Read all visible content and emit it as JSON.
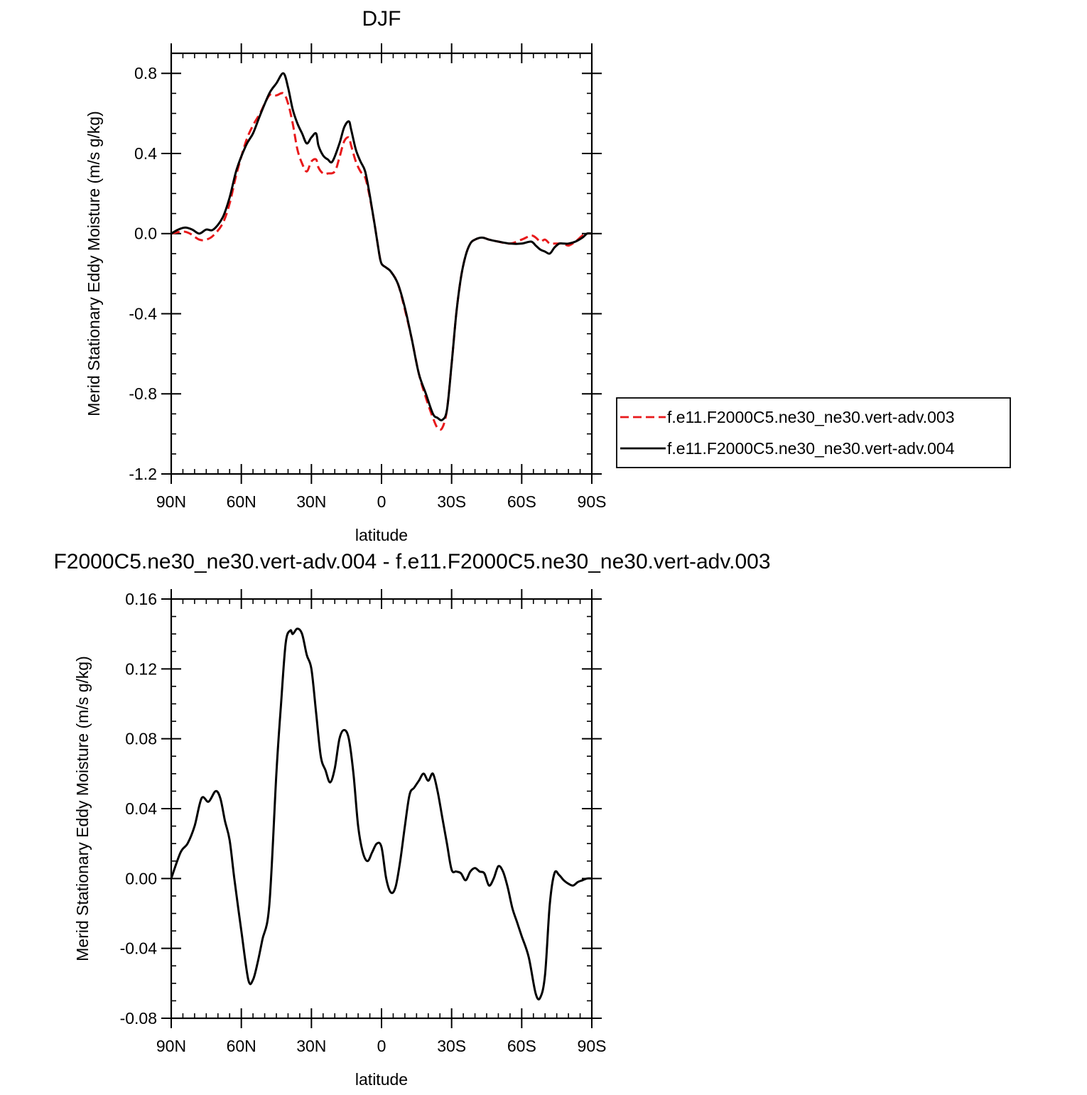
{
  "chart_data": [
    {
      "type": "line",
      "title": "DJF",
      "xlabel": "latitude",
      "ylabel": "Merid Stationary Eddy Moisture (m/s g/kg)",
      "xlim": [
        -90,
        90
      ],
      "ylim": [
        -1.2,
        0.9
      ],
      "x_ticks": [
        -90,
        -60,
        -30,
        0,
        30,
        60,
        90
      ],
      "x_tick_labels": [
        "90N",
        "60N",
        "30N",
        "0",
        "30S",
        "60S",
        "90S"
      ],
      "y_ticks": [
        -1.2,
        -0.8,
        -0.4,
        0.0,
        0.4,
        0.8
      ],
      "y_tick_labels": [
        "-1.2",
        "-0.8",
        "-0.4",
        "0.0",
        "0.4",
        "0.8"
      ],
      "legend_position": "right",
      "series": [
        {
          "name": "f.e11.F2000C5.ne30_ne30.vert-adv.003",
          "color": "#e8191b",
          "dash": "dashed",
          "x": [
            -90,
            -85,
            -82,
            -78,
            -75,
            -72,
            -68,
            -65,
            -62,
            -58,
            -55,
            -52,
            -48,
            -45,
            -42,
            -40,
            -38,
            -36,
            -34,
            -32,
            -30,
            -28,
            -27,
            -25,
            -23,
            -20,
            -18,
            -16,
            -14,
            -13,
            -11,
            -9,
            -7,
            -5,
            -3,
            -1,
            0,
            2,
            4,
            7,
            10,
            13,
            16,
            19,
            22,
            24,
            26,
            28,
            30,
            32,
            34,
            36,
            38,
            40,
            43,
            46,
            50,
            55,
            60,
            64,
            66,
            68,
            70,
            72,
            74,
            76,
            78,
            80,
            83,
            86,
            88,
            90
          ],
          "y": [
            0.0,
            0.01,
            0.0,
            -0.03,
            -0.03,
            -0.01,
            0.05,
            0.15,
            0.3,
            0.46,
            0.54,
            0.6,
            0.69,
            0.69,
            0.7,
            0.65,
            0.55,
            0.42,
            0.35,
            0.31,
            0.36,
            0.37,
            0.33,
            0.3,
            0.3,
            0.31,
            0.38,
            0.46,
            0.48,
            0.44,
            0.36,
            0.31,
            0.28,
            0.18,
            0.05,
            -0.1,
            -0.15,
            -0.17,
            -0.19,
            -0.25,
            -0.38,
            -0.53,
            -0.7,
            -0.82,
            -0.92,
            -0.97,
            -0.97,
            -0.88,
            -0.65,
            -0.4,
            -0.22,
            -0.11,
            -0.05,
            -0.03,
            -0.02,
            -0.03,
            -0.04,
            -0.05,
            -0.03,
            -0.01,
            -0.02,
            -0.04,
            -0.03,
            -0.05,
            -0.05,
            -0.05,
            -0.05,
            -0.06,
            -0.04,
            -0.01,
            0.0,
            0.0
          ]
        },
        {
          "name": "f.e11.F2000C5.ne30_ne30.vert-adv.004",
          "color": "#000000",
          "dash": "solid",
          "x": [
            -90,
            -87,
            -84,
            -81,
            -78,
            -75,
            -72,
            -68,
            -65,
            -62,
            -58,
            -55,
            -52,
            -48,
            -45,
            -42,
            -40,
            -38,
            -36,
            -34,
            -32,
            -30,
            -28,
            -27,
            -25,
            -23,
            -21,
            -18,
            -16,
            -14,
            -13,
            -11,
            -9,
            -7,
            -5,
            -3,
            -1,
            0,
            2,
            4,
            7,
            10,
            13,
            16,
            19,
            22,
            24,
            26,
            28,
            30,
            32,
            34,
            36,
            38,
            40,
            43,
            46,
            50,
            55,
            60,
            64,
            66,
            68,
            70,
            72,
            74,
            76,
            78,
            80,
            83,
            86,
            88,
            90
          ],
          "y": [
            0.0,
            0.02,
            0.03,
            0.02,
            0.0,
            0.02,
            0.02,
            0.08,
            0.18,
            0.32,
            0.44,
            0.5,
            0.59,
            0.7,
            0.75,
            0.8,
            0.73,
            0.62,
            0.55,
            0.5,
            0.45,
            0.48,
            0.5,
            0.44,
            0.39,
            0.37,
            0.36,
            0.45,
            0.53,
            0.56,
            0.52,
            0.42,
            0.36,
            0.31,
            0.19,
            0.05,
            -0.1,
            -0.15,
            -0.17,
            -0.19,
            -0.25,
            -0.37,
            -0.53,
            -0.7,
            -0.8,
            -0.9,
            -0.92,
            -0.93,
            -0.88,
            -0.65,
            -0.4,
            -0.22,
            -0.11,
            -0.05,
            -0.03,
            -0.02,
            -0.03,
            -0.04,
            -0.05,
            -0.05,
            -0.04,
            -0.06,
            -0.08,
            -0.09,
            -0.1,
            -0.07,
            -0.05,
            -0.05,
            -0.05,
            -0.04,
            -0.02,
            0.0,
            0.0
          ]
        }
      ]
    },
    {
      "type": "line",
      "title": "F2000C5.ne30_ne30.vert-adv.004 - f.e11.F2000C5.ne30_ne30.vert-adv.003",
      "xlabel": "latitude",
      "ylabel": "Merid Stationary Eddy Moisture (m/s g/kg)",
      "xlim": [
        -90,
        90
      ],
      "ylim": [
        -0.08,
        0.16
      ],
      "x_ticks": [
        -90,
        -60,
        -30,
        0,
        30,
        60,
        90
      ],
      "x_tick_labels": [
        "90N",
        "60N",
        "30N",
        "0",
        "30S",
        "60S",
        "90S"
      ],
      "y_ticks": [
        -0.08,
        -0.04,
        0.0,
        0.04,
        0.08,
        0.12,
        0.16
      ],
      "y_tick_labels": [
        "-0.08",
        "-0.04",
        "0.00",
        "0.04",
        "0.08",
        "0.12",
        "0.16"
      ],
      "series": [
        {
          "color": "#000000",
          "dash": "solid",
          "x": [
            -90,
            -86,
            -83,
            -80,
            -77,
            -74,
            -71,
            -69,
            -67,
            -65,
            -63,
            -60,
            -57,
            -55,
            -53,
            -51,
            -48,
            -45,
            -43,
            -41,
            -39,
            -38,
            -36,
            -34,
            -32,
            -30,
            -28,
            -26,
            -24,
            -22,
            -20,
            -18,
            -16,
            -14,
            -12,
            -10,
            -8,
            -6,
            -4,
            -2,
            0,
            2,
            4,
            6,
            8,
            10,
            12,
            14,
            16,
            18,
            20,
            22,
            24,
            26,
            28,
            30,
            32,
            34,
            36,
            38,
            40,
            42,
            44,
            46,
            48,
            50,
            52,
            54,
            56,
            58,
            60,
            63,
            66,
            68,
            70,
            72,
            74,
            76,
            78,
            80,
            82,
            84,
            86,
            88,
            90
          ],
          "y": [
            0.0,
            0.015,
            0.02,
            0.03,
            0.046,
            0.044,
            0.05,
            0.046,
            0.033,
            0.022,
            0.0,
            -0.03,
            -0.058,
            -0.058,
            -0.048,
            -0.035,
            -0.015,
            0.06,
            0.1,
            0.135,
            0.142,
            0.14,
            0.143,
            0.14,
            0.128,
            0.12,
            0.095,
            0.07,
            0.062,
            0.055,
            0.063,
            0.08,
            0.085,
            0.08,
            0.06,
            0.03,
            0.015,
            0.01,
            0.015,
            0.02,
            0.018,
            0.0,
            -0.008,
            -0.005,
            0.01,
            0.03,
            0.048,
            0.052,
            0.056,
            0.06,
            0.056,
            0.06,
            0.05,
            0.035,
            0.02,
            0.005,
            0.004,
            0.003,
            -0.001,
            0.004,
            0.006,
            0.004,
            0.003,
            -0.004,
            0.0,
            0.007,
            0.004,
            -0.005,
            -0.017,
            -0.025,
            -0.033,
            -0.045,
            -0.066,
            -0.068,
            -0.055,
            -0.015,
            0.003,
            0.002,
            -0.001,
            -0.003,
            -0.004,
            -0.002,
            -0.001,
            0.0,
            0.0
          ]
        }
      ]
    }
  ]
}
